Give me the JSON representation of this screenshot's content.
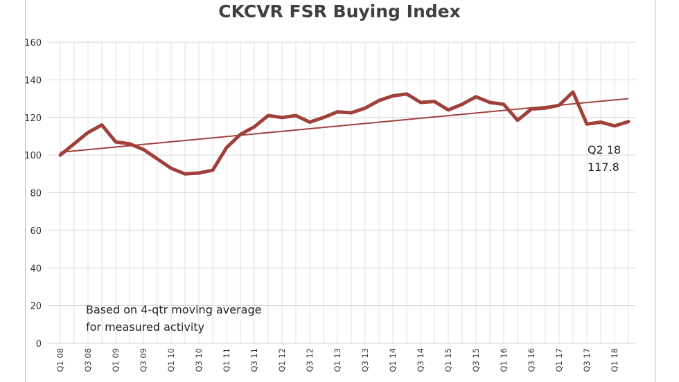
{
  "chart_data": {
    "type": "line",
    "title": "CKCVR FSR Buying Index",
    "xlabel": "",
    "ylabel": "",
    "ylim": [
      0,
      160
    ],
    "yticks": [
      0,
      20,
      40,
      60,
      80,
      100,
      120,
      140,
      160
    ],
    "grid": true,
    "legend": "none",
    "x_tick_labels": [
      "Q1 08",
      "Q3 08",
      "Q1 09",
      "Q3 09",
      "Q1 10",
      "Q3 10",
      "Q1 11",
      "Q3 11",
      "Q1 12",
      "Q3 12",
      "Q1 13",
      "Q3 13",
      "Q1 14",
      "Q3 14",
      "Q1 15",
      "Q3 15",
      "Q1 16",
      "Q3 16",
      "Q1 17",
      "Q3 17",
      "Q1 18"
    ],
    "categories": [
      "Q1 08",
      "Q2 08",
      "Q3 08",
      "Q4 08",
      "Q1 09",
      "Q2 09",
      "Q3 09",
      "Q4 09",
      "Q1 10",
      "Q2 10",
      "Q3 10",
      "Q4 10",
      "Q1 11",
      "Q2 11",
      "Q3 11",
      "Q4 11",
      "Q1 12",
      "Q2 12",
      "Q3 12",
      "Q4 12",
      "Q1 13",
      "Q2 13",
      "Q3 13",
      "Q4 13",
      "Q1 14",
      "Q2 14",
      "Q3 14",
      "Q4 14",
      "Q1 15",
      "Q2 15",
      "Q3 15",
      "Q4 15",
      "Q1 16",
      "Q2 16",
      "Q3 16",
      "Q4 16",
      "Q1 17",
      "Q2 17",
      "Q3 17",
      "Q4 17",
      "Q1 18",
      "Q2 18"
    ],
    "series": [
      {
        "values": [
          100,
          106,
          112,
          116,
          107,
          106,
          103,
          98,
          93,
          90,
          90.5,
          92,
          104,
          111,
          115,
          121,
          120,
          121,
          117.5,
          120,
          123,
          122.5,
          125,
          129,
          131.5,
          132.5,
          128,
          128.5,
          124,
          127,
          131,
          128,
          127,
          118.5,
          124.5,
          125,
          126.5,
          133.5,
          116.5,
          117.5,
          115.5,
          117.8
        ],
        "color": "#a0403b"
      }
    ],
    "trendline": {
      "start": 101.5,
      "end": 130,
      "color": "#a0403b"
    },
    "annotations": {
      "label_quarter": "Q2 18",
      "label_value": "117.8",
      "note_line1": "Based on 4-qtr moving average",
      "note_line2": "for measured activity"
    }
  }
}
